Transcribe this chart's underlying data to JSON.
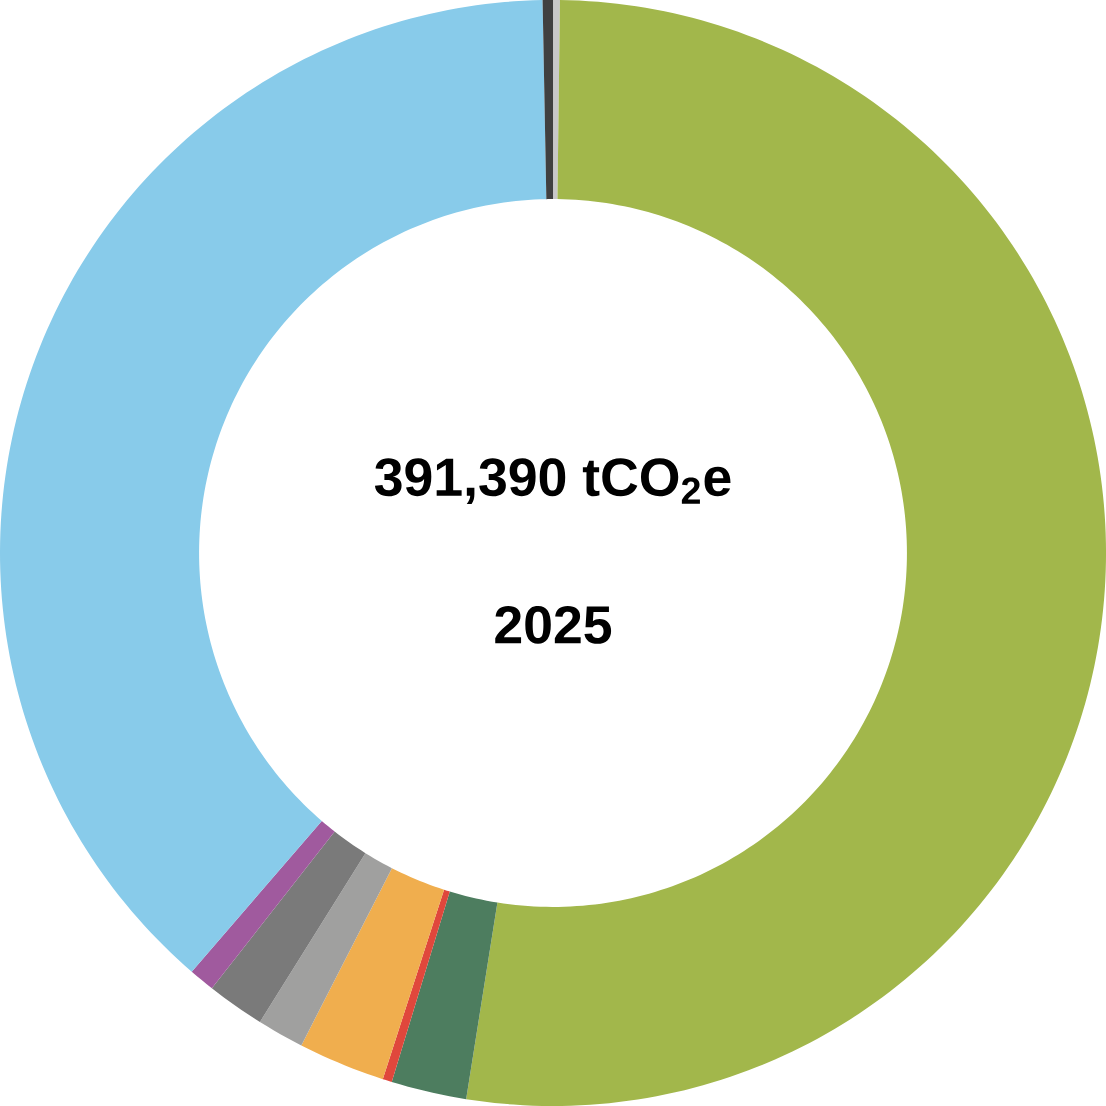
{
  "chart_data": {
    "type": "donut",
    "title": "391,390 tCO$_{2}$e",
    "subtitle": "2025",
    "categories": [
      null,
      null,
      null,
      null,
      null,
      null,
      null,
      null,
      null,
      null
    ],
    "values": [
      0.2,
      52.31,
      2.2,
      0.27,
      2.54,
      1.37,
      1.69,
      0.75,
      38.37,
      0.3
    ],
    "colors": [
      "#c8c8c8",
      "#a2b74b",
      "#4d7d5f",
      "#e0473c",
      "#f0ae4e",
      "#a0a09f",
      "#7a7a7a",
      "#a05a9e",
      "#88cbea",
      "#404040"
    ]
  }
}
